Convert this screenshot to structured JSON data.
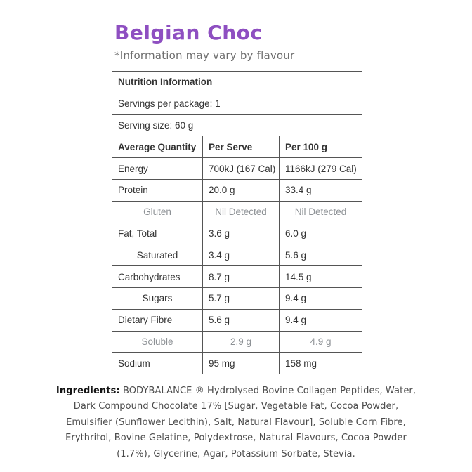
{
  "header": {
    "title": "Belgian Choc",
    "subtitle": "*Information may vary by flavour"
  },
  "colors": {
    "title_purple": "#8e4fc1",
    "subtitle_gray": "#6e6e6e",
    "table_text": "#333333",
    "muted_row_gray": "#8e9296",
    "table_border": "#555555"
  },
  "nutrition_table": {
    "title": "Nutrition Information",
    "servings_per_package": "Servings per package: 1",
    "serving_size": "Serving size: 60 g",
    "columns": [
      "Average Quantity",
      "Per Serve",
      "Per 100 g"
    ],
    "rows": [
      {
        "label": "Energy",
        "per_serve": "700kJ (167 Cal)",
        "per_100g": "1166kJ (279 Cal)",
        "style": "normal"
      },
      {
        "label": "Protein",
        "per_serve": "20.0 g",
        "per_100g": "33.4 g",
        "style": "normal"
      },
      {
        "label": "Gluten",
        "per_serve": "Nil Detected",
        "per_100g": "Nil Detected",
        "style": "muted"
      },
      {
        "label": "Fat, Total",
        "per_serve": "3.6 g",
        "per_100g": "6.0 g",
        "style": "normal"
      },
      {
        "label": "Saturated",
        "per_serve": "3.4 g",
        "per_100g": "5.6 g",
        "style": "sub"
      },
      {
        "label": "Carbohydrates",
        "per_serve": "8.7 g",
        "per_100g": "14.5 g",
        "style": "normal"
      },
      {
        "label": "Sugars",
        "per_serve": "5.7 g",
        "per_100g": "9.4 g",
        "style": "sub"
      },
      {
        "label": "Dietary Fibre",
        "per_serve": "5.6 g",
        "per_100g": "9.4 g",
        "style": "normal"
      },
      {
        "label": "Soluble",
        "per_serve": "2.9 g",
        "per_100g": "4.9 g",
        "style": "muted"
      },
      {
        "label": "Sodium",
        "per_serve": "95 mg",
        "per_100g": "158 mg",
        "style": "normal"
      }
    ]
  },
  "ingredients": {
    "label": "Ingredients:",
    "lines": [
      "BODYBALANCE ® Hydrolysed Bovine Collagen Peptides, Water,",
      "Dark Compound Chocolate 17% [Sugar, Vegetable Fat, Cocoa Powder,",
      "Emulsifier (Sunflower Lecithin), Salt, Natural Flavour], Soluble Corn Fibre,",
      "Erythritol, Bovine Gelatine, Polydextrose, Natural Flavours, Cocoa Powder",
      "(1.7%), Glycerine, Agar, Potassium Sorbate, Stevia."
    ]
  }
}
